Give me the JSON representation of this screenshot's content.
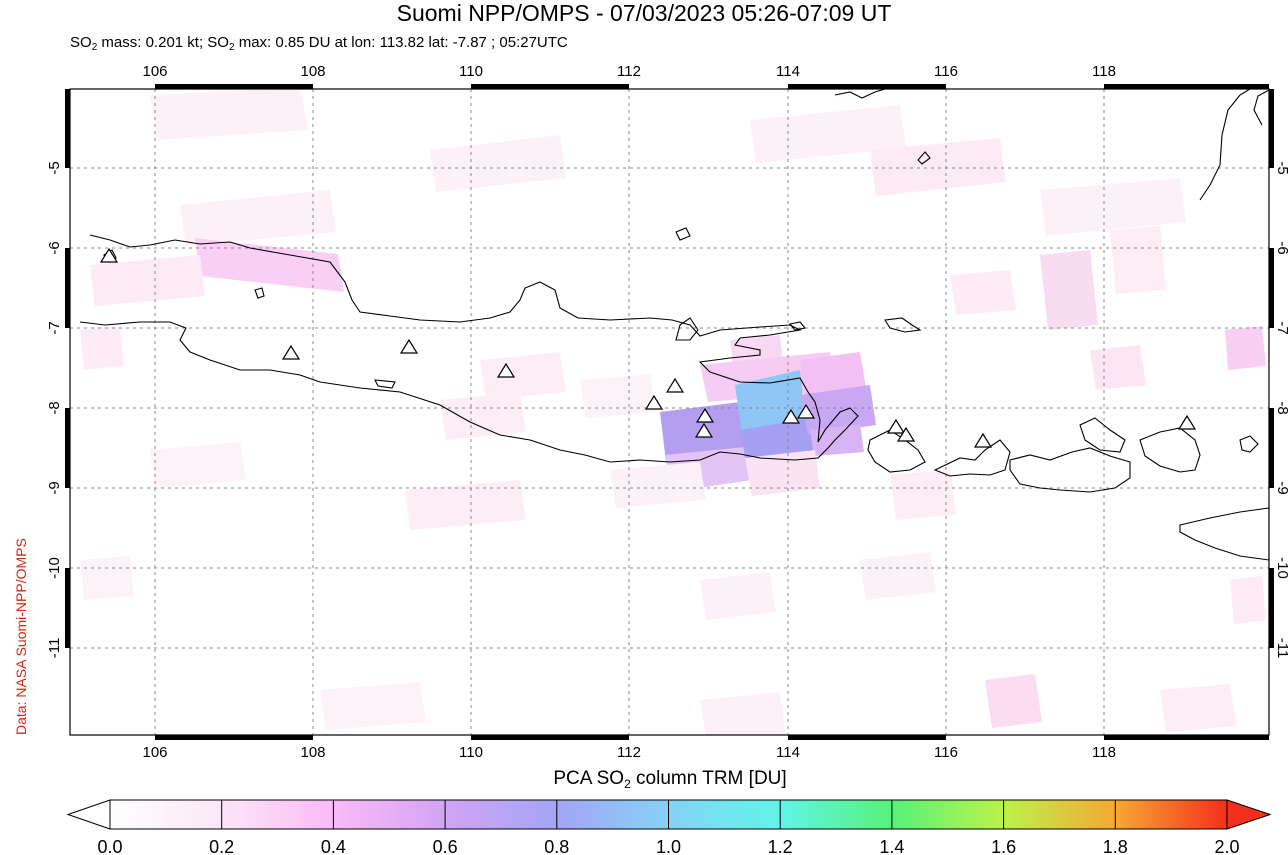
{
  "title": "Suomi NPP/OMPS - 07/03/2023 05:26-07:09 UT",
  "subtitle": {
    "p1": "SO",
    "p1_sub": "2",
    "p2": " mass: 0.201 kt; SO",
    "p2_sub": "2",
    "p3": " max: 0.85 DU at lon: 113.82 lat: -7.87 ; 05:27UTC"
  },
  "credit": "Data: NASA Suomi-NPP/OMPS",
  "map": {
    "lon_range": [
      105.0,
      120.0
    ],
    "lat_range": [
      -12.0,
      -4.0
    ],
    "lon_ticks": [
      "106",
      "108",
      "110",
      "112",
      "114",
      "116",
      "118"
    ],
    "lat_ticks": [
      "-5",
      "-6",
      "-7",
      "-8",
      "-9",
      "-10",
      "-11"
    ],
    "grid": "dotted",
    "volcano_marker": "triangle-icon"
  },
  "colorbar": {
    "label_p1": "PCA SO",
    "label_sub": "2",
    "label_p2": " column TRM [DU]",
    "ticks": [
      "0.0",
      "0.2",
      "0.4",
      "0.6",
      "0.8",
      "1.0",
      "1.2",
      "1.4",
      "1.6",
      "1.8",
      "2.0"
    ],
    "colors": [
      "#ffffff",
      "#fde8f5",
      "#fab4f4",
      "#d8a4f4",
      "#a89cf4",
      "#8cc8f4",
      "#5cf4ec",
      "#54f47c",
      "#b8f44c",
      "#f4e43c",
      "#f4902c",
      "#f42c1c"
    ]
  }
}
